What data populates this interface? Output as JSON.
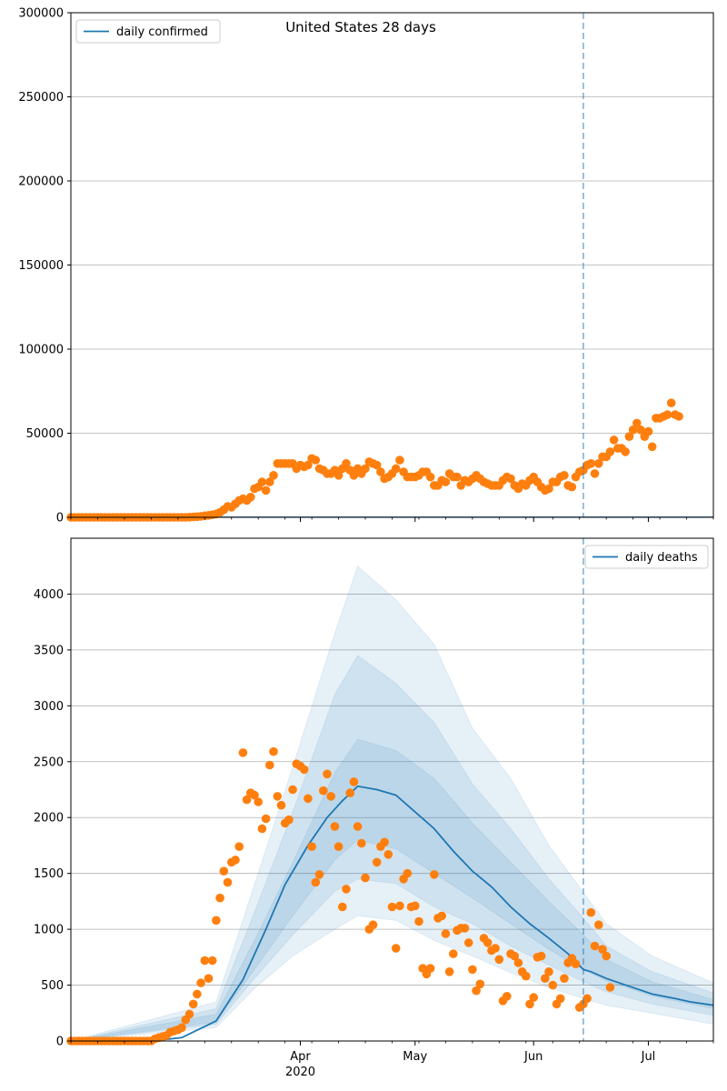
{
  "chart_data": [
    {
      "type": "scatter",
      "title": "United States 28 days",
      "legend": {
        "location": "upper-left",
        "entries": [
          "daily confirmed"
        ]
      },
      "grid": "y",
      "xlim": [
        "2020-02-01",
        "2020-07-18"
      ],
      "ylim": [
        0,
        300000
      ],
      "yticks": [
        0,
        50000,
        100000,
        150000,
        200000,
        250000,
        300000
      ],
      "xticks_major": [
        {
          "date": "2020-04-01",
          "label": "Apr",
          "sub": "2020"
        },
        {
          "date": "2020-05-01",
          "label": "May",
          "sub": ""
        },
        {
          "date": "2020-06-01",
          "label": "Jun",
          "sub": ""
        },
        {
          "date": "2020-07-01",
          "label": "Jul",
          "sub": ""
        }
      ],
      "vline_date": "2020-06-14",
      "series": [
        {
          "name": "daily confirmed",
          "kind": "line",
          "color": "#1f77b4",
          "values": [
            [
              "2020-02-01",
              0
            ],
            [
              "2020-07-18",
              0
            ]
          ]
        },
        {
          "kind": "observed",
          "color": "#ff7f0e",
          "start_date": "2020-02-01",
          "values": [
            0,
            0,
            0,
            0,
            0,
            0,
            0,
            0,
            0,
            0,
            0,
            0,
            0,
            0,
            0,
            0,
            0,
            0,
            0,
            0,
            0,
            0,
            0,
            0,
            0,
            0,
            0,
            0,
            0,
            0,
            0,
            100,
            250,
            400,
            600,
            900,
            1200,
            1500,
            2000,
            3000,
            4500,
            6500,
            6000,
            8000,
            10000,
            11000,
            10000,
            12000,
            17000,
            18000,
            21000,
            16000,
            21000,
            25000,
            32000,
            32000,
            32000,
            32000,
            32000,
            29000,
            31000,
            30000,
            31000,
            35000,
            34000,
            29000,
            28000,
            26000,
            26000,
            28000,
            25000,
            29000,
            32000,
            28000,
            25000,
            29000,
            26000,
            29000,
            33000,
            32000,
            31000,
            27000,
            23000,
            24000,
            26000,
            29000,
            34000,
            27000,
            24000,
            24000,
            24000,
            25000,
            27000,
            27000,
            24000,
            19000,
            19000,
            22000,
            21000,
            26000,
            24000,
            24000,
            19000,
            22000,
            21000,
            23000,
            25000,
            23000,
            21000,
            20000,
            19000,
            19000,
            19000,
            22000,
            24000,
            23000,
            19000,
            17000,
            20000,
            19000,
            22000,
            24000,
            21000,
            18000,
            16000,
            17000,
            21000,
            21000,
            24000,
            25000,
            19000,
            18000,
            24000,
            27000,
            28000,
            31000,
            32000,
            26000,
            32000,
            36000,
            36000,
            39000,
            46000,
            41000,
            41000,
            39000,
            48000,
            52000,
            56000,
            52000,
            48000,
            51000,
            42000,
            59000,
            59000,
            60000,
            61000,
            68000,
            61000,
            60000
          ]
        }
      ]
    },
    {
      "type": "scatter",
      "legend": {
        "location": "upper-right",
        "entries": [
          "daily deaths"
        ]
      },
      "grid": "y",
      "xlim": [
        "2020-02-01",
        "2020-07-18"
      ],
      "ylim": [
        0,
        4500
      ],
      "yticks": [
        0,
        500,
        1000,
        1500,
        2000,
        2500,
        3000,
        3500,
        4000
      ],
      "xticks_major": [
        {
          "date": "2020-04-01",
          "label": "Apr",
          "sub": "2020"
        },
        {
          "date": "2020-05-01",
          "label": "May",
          "sub": ""
        },
        {
          "date": "2020-06-01",
          "label": "Jun",
          "sub": ""
        },
        {
          "date": "2020-07-01",
          "label": "Jul",
          "sub": ""
        }
      ],
      "vline_date": "2020-06-14",
      "series": [
        {
          "name": "daily deaths",
          "kind": "line",
          "color": "#1f77b4",
          "values": [
            [
              "2020-02-01",
              0
            ],
            [
              "2020-02-22",
              0
            ],
            [
              "2020-03-01",
              30
            ],
            [
              "2020-03-10",
              180
            ],
            [
              "2020-03-17",
              550
            ],
            [
              "2020-03-23",
              1000
            ],
            [
              "2020-03-28",
              1400
            ],
            [
              "2020-04-03",
              1750
            ],
            [
              "2020-04-08",
              2000
            ],
            [
              "2020-04-12",
              2150
            ],
            [
              "2020-04-16",
              2280
            ],
            [
              "2020-04-21",
              2250
            ],
            [
              "2020-04-26",
              2200
            ],
            [
              "2020-05-01",
              2050
            ],
            [
              "2020-05-06",
              1900
            ],
            [
              "2020-05-11",
              1700
            ],
            [
              "2020-05-16",
              1520
            ],
            [
              "2020-05-21",
              1380
            ],
            [
              "2020-05-26",
              1200
            ],
            [
              "2020-05-31",
              1050
            ],
            [
              "2020-06-05",
              920
            ],
            [
              "2020-06-10",
              780
            ],
            [
              "2020-06-14",
              640
            ],
            [
              "2020-06-16",
              620
            ],
            [
              "2020-06-20",
              560
            ],
            [
              "2020-06-26",
              490
            ],
            [
              "2020-07-02",
              420
            ],
            [
              "2020-07-08",
              380
            ],
            [
              "2020-07-12",
              350
            ],
            [
              "2020-07-18",
              320
            ]
          ]
        },
        {
          "kind": "observed",
          "color": "#ff7f0e",
          "start_date": "2020-02-01",
          "values": [
            0,
            0,
            0,
            0,
            0,
            0,
            0,
            0,
            0,
            0,
            0,
            0,
            0,
            0,
            0,
            0,
            0,
            0,
            0,
            0,
            0,
            0,
            20,
            30,
            40,
            50,
            80,
            90,
            100,
            120,
            190,
            240,
            330,
            420,
            520,
            720,
            560,
            720,
            1080,
            1280,
            1520,
            1420,
            1600,
            1620,
            1740,
            2580,
            2160,
            2220,
            2200,
            2140,
            1900,
            1990,
            2470,
            2590,
            2190,
            2110,
            1950,
            1980,
            2250,
            2480,
            2460,
            2430,
            2170,
            1740,
            1420,
            1490,
            2240,
            2390,
            2190,
            1920,
            1740,
            1200,
            1360,
            2220,
            2320,
            1920,
            1770,
            1460,
            1000,
            1040,
            1600,
            1740,
            1780,
            1670,
            1200,
            830,
            1210,
            1450,
            1500,
            1200,
            1210,
            1070,
            650,
            600,
            650,
            1490,
            1100,
            1120,
            960,
            620,
            780,
            990,
            1010,
            1010,
            880,
            640,
            450,
            510,
            920,
            880,
            810,
            830,
            730,
            360,
            400,
            780,
            760,
            700,
            620,
            580,
            330,
            390,
            750,
            760,
            560,
            620,
            500,
            330,
            380,
            560,
            700,
            740,
            690,
            300,
            330,
            380,
            1150,
            850,
            1040,
            820,
            760,
            480
          ]
        },
        {
          "kind": "band",
          "color": "#1f77b4",
          "levels": [
            {
              "lower": [
                [
                  "2020-02-01",
                  0
                ],
                [
                  "2020-03-10",
                  120
                ],
                [
                  "2020-03-20",
                  470
                ],
                [
                  "2020-03-30",
                  760
                ],
                [
                  "2020-04-10",
                  1000
                ],
                [
                  "2020-04-16",
                  1120
                ],
                [
                  "2020-04-26",
                  1080
                ],
                [
                  "2020-05-06",
                  900
                ],
                [
                  "2020-05-16",
                  760
                ],
                [
                  "2020-05-26",
                  610
                ],
                [
                  "2020-06-05",
                  480
                ],
                [
                  "2020-06-14",
                  380
                ],
                [
                  "2020-06-20",
                  320
                ],
                [
                  "2020-07-02",
                  250
                ],
                [
                  "2020-07-18",
                  150
                ]
              ],
              "upper": [
                [
                  "2020-02-01",
                  0
                ],
                [
                  "2020-03-10",
                  350
                ],
                [
                  "2020-03-20",
                  1400
                ],
                [
                  "2020-03-30",
                  2450
                ],
                [
                  "2020-04-10",
                  3650
                ],
                [
                  "2020-04-16",
                  4250
                ],
                [
                  "2020-04-26",
                  3950
                ],
                [
                  "2020-05-06",
                  3550
                ],
                [
                  "2020-05-16",
                  2800
                ],
                [
                  "2020-05-26",
                  2350
                ],
                [
                  "2020-06-05",
                  1750
                ],
                [
                  "2020-06-14",
                  1330
                ],
                [
                  "2020-06-20",
                  1050
                ],
                [
                  "2020-07-02",
                  760
                ],
                [
                  "2020-07-18",
                  520
                ]
              ]
            },
            {
              "lower": [
                [
                  "2020-02-01",
                  0
                ],
                [
                  "2020-03-10",
                  150
                ],
                [
                  "2020-03-20",
                  560
                ],
                [
                  "2020-03-30",
                  950
                ],
                [
                  "2020-04-10",
                  1340
                ],
                [
                  "2020-04-16",
                  1450
                ],
                [
                  "2020-04-26",
                  1410
                ],
                [
                  "2020-05-06",
                  1200
                ],
                [
                  "2020-05-16",
                  1050
                ],
                [
                  "2020-05-26",
                  850
                ],
                [
                  "2020-06-05",
                  680
                ],
                [
                  "2020-06-14",
                  530
                ],
                [
                  "2020-06-20",
                  440
                ],
                [
                  "2020-07-02",
                  330
                ],
                [
                  "2020-07-18",
                  230
                ]
              ],
              "upper": [
                [
                  "2020-02-01",
                  0
                ],
                [
                  "2020-03-10",
                  290
                ],
                [
                  "2020-03-20",
                  1150
                ],
                [
                  "2020-03-30",
                  2050
                ],
                [
                  "2020-04-10",
                  3100
                ],
                [
                  "2020-04-16",
                  3450
                ],
                [
                  "2020-04-26",
                  3200
                ],
                [
                  "2020-05-06",
                  2850
                ],
                [
                  "2020-05-16",
                  2300
                ],
                [
                  "2020-05-26",
                  1900
                ],
                [
                  "2020-06-05",
                  1450
                ],
                [
                  "2020-06-14",
                  1100
                ],
                [
                  "2020-06-20",
                  850
                ],
                [
                  "2020-07-02",
                  620
                ],
                [
                  "2020-07-18",
                  430
                ]
              ]
            },
            {
              "lower": [
                [
                  "2020-02-01",
                  0
                ],
                [
                  "2020-03-10",
                  170
                ],
                [
                  "2020-03-20",
                  640
                ],
                [
                  "2020-03-30",
                  1120
                ],
                [
                  "2020-04-10",
                  1620
                ],
                [
                  "2020-04-16",
                  1800
                ],
                [
                  "2020-04-26",
                  1720
                ],
                [
                  "2020-05-06",
                  1500
                ],
                [
                  "2020-05-16",
                  1280
                ],
                [
                  "2020-05-26",
                  1050
                ],
                [
                  "2020-06-05",
                  820
                ],
                [
                  "2020-06-14",
                  640
                ],
                [
                  "2020-06-20",
                  540
                ],
                [
                  "2020-07-02",
                  400
                ],
                [
                  "2020-07-18",
                  290
                ]
              ],
              "upper": [
                [
                  "2020-02-01",
                  0
                ],
                [
                  "2020-03-10",
                  240
                ],
                [
                  "2020-03-20",
                  900
                ],
                [
                  "2020-03-30",
                  1600
                ],
                [
                  "2020-04-10",
                  2400
                ],
                [
                  "2020-04-16",
                  2700
                ],
                [
                  "2020-04-26",
                  2600
                ],
                [
                  "2020-05-06",
                  2350
                ],
                [
                  "2020-05-16",
                  1950
                ],
                [
                  "2020-05-26",
                  1600
                ],
                [
                  "2020-06-05",
                  1250
                ],
                [
                  "2020-06-14",
                  950
                ],
                [
                  "2020-06-20",
                  730
                ],
                [
                  "2020-07-02",
                  530
                ],
                [
                  "2020-07-18",
                  370
                ]
              ]
            }
          ]
        }
      ]
    }
  ]
}
